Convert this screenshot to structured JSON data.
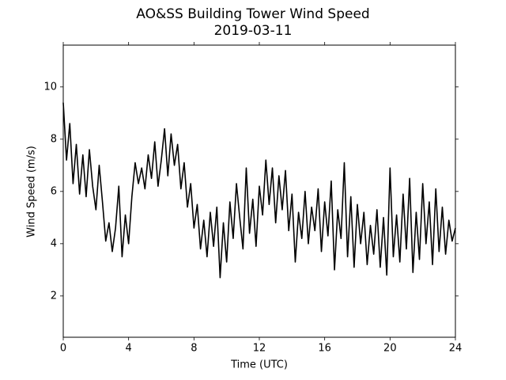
{
  "chart_data": {
    "type": "line",
    "title": "AO&SS Building Tower Wind Speed",
    "subtitle": "2019-03-11",
    "x_label": "Time (UTC)",
    "y_label": "Wind Speed (m/s)",
    "xlim": [
      0,
      24
    ],
    "xticks": [
      0,
      4,
      8,
      12,
      16,
      20,
      24
    ],
    "ylim": [
      0.42,
      11.6
    ],
    "yticks": [
      2,
      4,
      6,
      8,
      10
    ],
    "series": [
      {
        "color": "#000000",
        "x": [
          0,
          0.2,
          0.4,
          0.6,
          0.8,
          1,
          1.2,
          1.4,
          1.6,
          1.8,
          2,
          2.2,
          2.4,
          2.6,
          2.8,
          3,
          3.2,
          3.4,
          3.6,
          3.8,
          4,
          4.2,
          4.4,
          4.6,
          4.8,
          5,
          5.2,
          5.4,
          5.6,
          5.8,
          6,
          6.2,
          6.4,
          6.6,
          6.8,
          7,
          7.2,
          7.4,
          7.6,
          7.8,
          8,
          8.2,
          8.4,
          8.6,
          8.8,
          9,
          9.2,
          9.4,
          9.6,
          9.8,
          10,
          10.2,
          10.4,
          10.6,
          10.8,
          11,
          11.2,
          11.4,
          11.6,
          11.8,
          12,
          12.2,
          12.4,
          12.6,
          12.8,
          13,
          13.2,
          13.4,
          13.6,
          13.8,
          14,
          14.2,
          14.4,
          14.6,
          14.8,
          15,
          15.2,
          15.4,
          15.6,
          15.8,
          16,
          16.2,
          16.4,
          16.6,
          16.8,
          17,
          17.2,
          17.4,
          17.6,
          17.8,
          18,
          18.2,
          18.4,
          18.6,
          18.8,
          19,
          19.2,
          19.4,
          19.6,
          19.8,
          20,
          20.2,
          20.4,
          20.6,
          20.8,
          21,
          21.2,
          21.4,
          21.6,
          21.8,
          22,
          22.2,
          22.4,
          22.6,
          22.8,
          23,
          23.2,
          23.4,
          23.6,
          23.8,
          24
        ],
        "values": [
          9.4,
          7.2,
          8.6,
          6.3,
          7.8,
          5.9,
          7.4,
          5.8,
          7.6,
          6.2,
          5.3,
          7.0,
          5.6,
          4.1,
          4.8,
          3.7,
          4.6,
          6.2,
          3.5,
          5.1,
          4.0,
          5.8,
          7.1,
          6.3,
          6.9,
          6.1,
          7.4,
          6.5,
          7.9,
          6.2,
          7.2,
          8.4,
          6.6,
          8.2,
          7.0,
          7.8,
          6.1,
          7.1,
          5.4,
          6.3,
          4.6,
          5.5,
          3.8,
          4.9,
          3.5,
          5.2,
          3.9,
          5.4,
          2.7,
          4.8,
          3.3,
          5.6,
          4.2,
          6.3,
          5.0,
          3.8,
          6.9,
          4.4,
          5.7,
          3.9,
          6.2,
          5.1,
          7.2,
          5.5,
          6.9,
          4.8,
          6.6,
          5.3,
          6.8,
          4.5,
          5.9,
          3.3,
          5.2,
          4.2,
          6.0,
          4.0,
          5.4,
          4.5,
          6.1,
          3.7,
          5.6,
          4.3,
          6.4,
          3.0,
          5.3,
          4.2,
          7.1,
          3.5,
          5.8,
          3.1,
          5.5,
          4.0,
          5.2,
          3.2,
          4.7,
          3.6,
          5.3,
          3.1,
          5.0,
          2.8,
          6.9,
          3.5,
          5.1,
          3.3,
          5.9,
          3.8,
          6.5,
          2.9,
          5.2,
          3.4,
          6.3,
          4.0,
          5.6,
          3.2,
          6.1,
          3.7,
          5.4,
          3.6,
          4.9,
          4.1,
          4.6
        ]
      }
    ]
  }
}
